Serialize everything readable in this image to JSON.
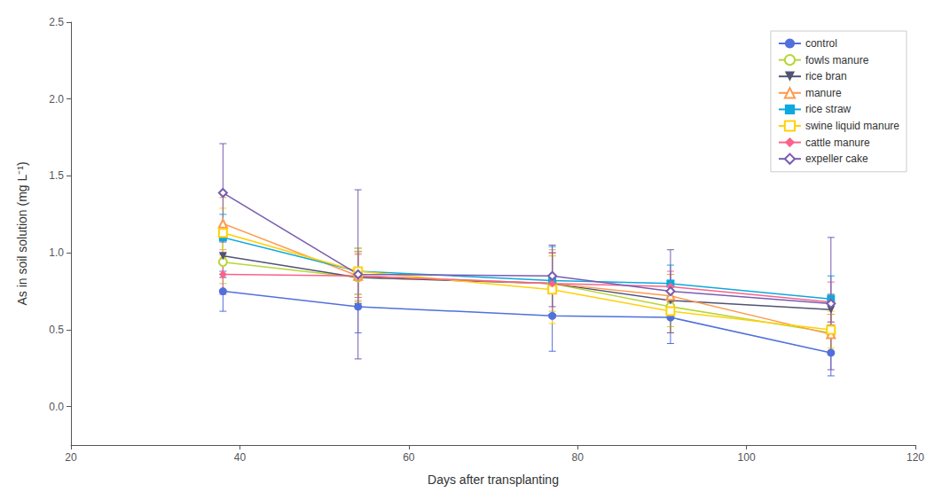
{
  "chart_data": {
    "type": "line",
    "xlabel": "Days after transplanting",
    "ylabel": "As in soil solution (mg L⁻¹)",
    "x": [
      38,
      54,
      77,
      91,
      110
    ],
    "series": [
      {
        "name": "control",
        "values": [
          0.75,
          0.65,
          0.59,
          0.58,
          0.35
        ],
        "yerr": [
          0.13,
          0.17,
          0.23,
          0.17,
          0.15
        ],
        "marker": "filled_circle"
      },
      {
        "name": "fowls manure",
        "values": [
          0.94,
          0.84,
          0.8,
          0.65,
          0.48
        ],
        "yerr": [
          0.14,
          0.16,
          0.18,
          0.13,
          0.12
        ],
        "marker": "open_circle"
      },
      {
        "name": "rice bran",
        "values": [
          0.98,
          0.84,
          0.8,
          0.69,
          0.63
        ],
        "yerr": [
          0.14,
          0.17,
          0.2,
          0.12,
          0.1
        ],
        "marker": "filled_triangle_down"
      },
      {
        "name": "manure",
        "values": [
          1.19,
          0.85,
          0.8,
          0.72,
          0.47
        ],
        "yerr": [
          0.17,
          0.16,
          0.22,
          0.14,
          0.13
        ],
        "marker": "open_triangle_up"
      },
      {
        "name": "rice straw",
        "values": [
          1.1,
          0.88,
          0.82,
          0.8,
          0.7
        ],
        "yerr": [
          0.15,
          0.15,
          0.22,
          0.12,
          0.15
        ],
        "marker": "filled_square"
      },
      {
        "name": "swine liquid manure",
        "values": [
          1.13,
          0.88,
          0.76,
          0.62,
          0.5
        ],
        "yerr": [
          0.16,
          0.15,
          0.22,
          0.14,
          0.12
        ],
        "marker": "open_square"
      },
      {
        "name": "cattle manure",
        "values": [
          0.86,
          0.85,
          0.8,
          0.78,
          0.68
        ],
        "yerr": [
          0.13,
          0.14,
          0.2,
          0.1,
          0.13
        ],
        "marker": "filled_diamond"
      },
      {
        "name": "expeller cake",
        "values": [
          1.39,
          0.86,
          0.85,
          0.75,
          0.67
        ],
        "yerr": [
          0.32,
          0.55,
          0.2,
          0.27,
          0.43
        ],
        "marker": "open_diamond"
      }
    ],
    "xlim": [
      20,
      120
    ],
    "xticks": [
      20,
      40,
      60,
      80,
      100,
      120
    ],
    "ylim": [
      -0.25,
      2.5
    ],
    "yticks": [
      {
        "value": 0,
        "label": "0.0"
      },
      0.5,
      {
        "value": 1,
        "label": "1.0"
      },
      1.5,
      {
        "value": 2,
        "label": "2.0"
      },
      2.5
    ],
    "grid": false,
    "legend": "upper right"
  }
}
